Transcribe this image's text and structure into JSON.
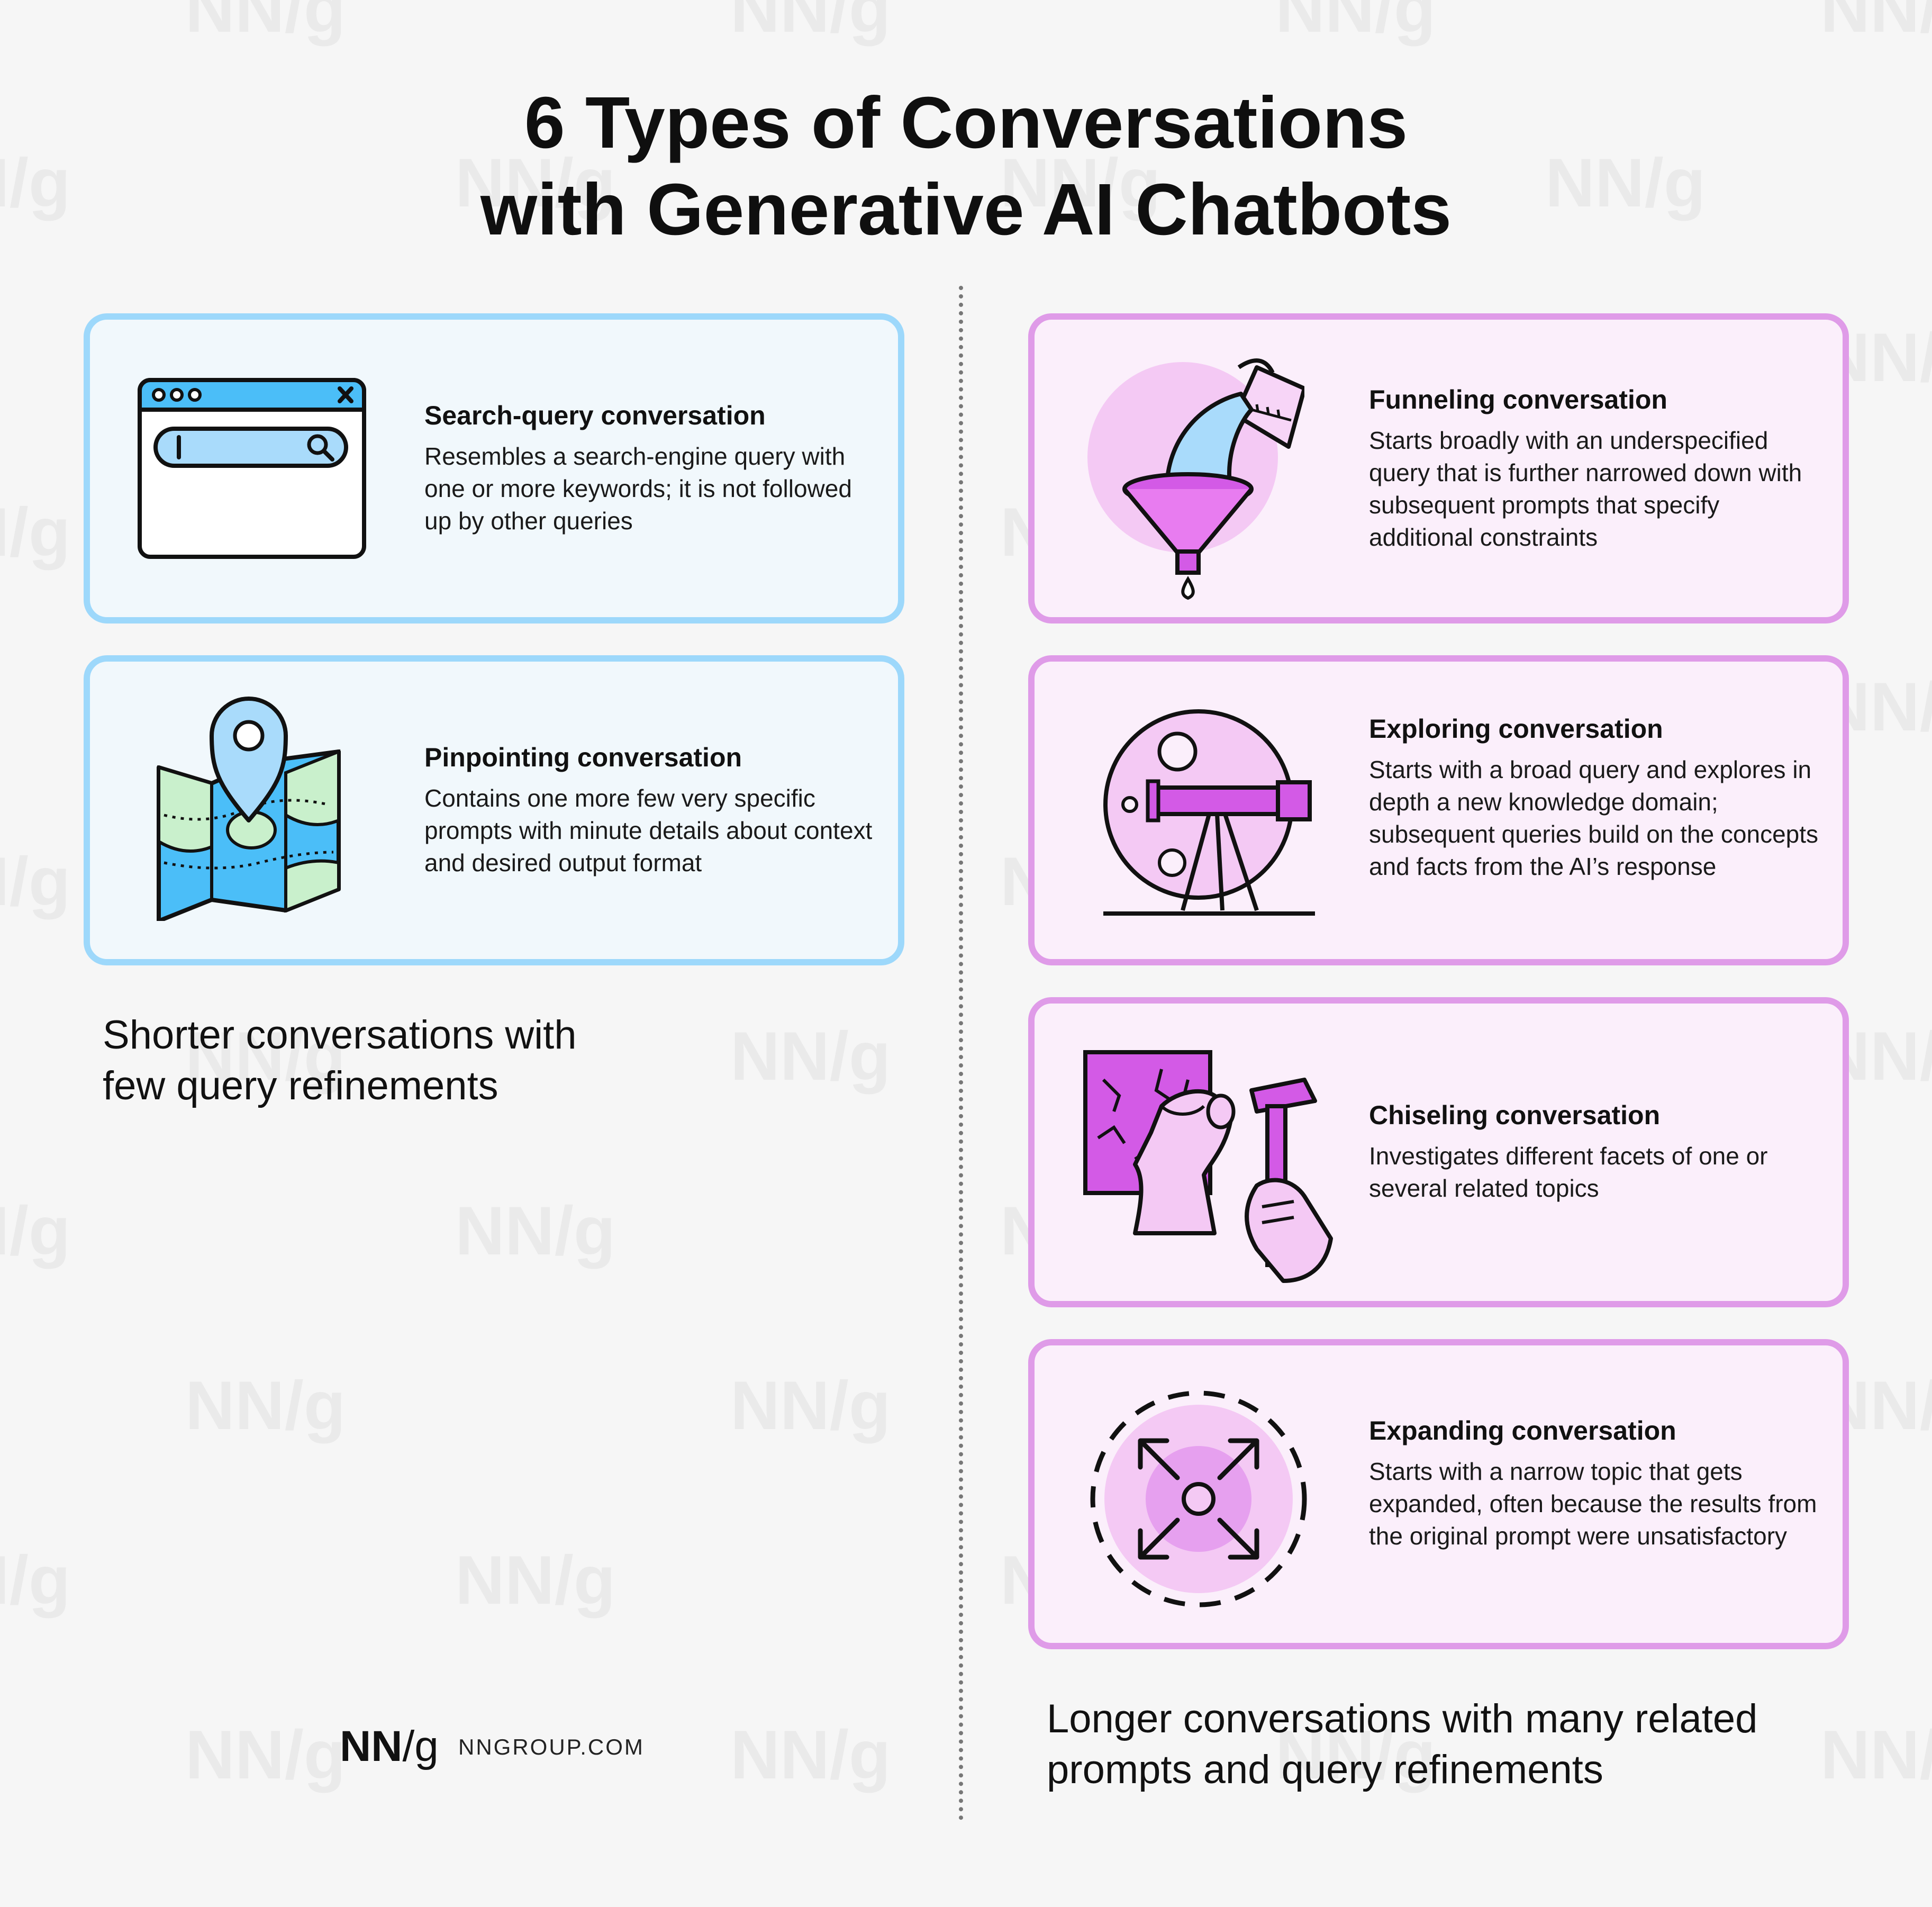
{
  "title": {
    "line1": "6 Types of Conversations",
    "line2": "with Generative AI Chatbots"
  },
  "cards": [
    {
      "title": "Search-query conversation",
      "description": "Resembles a search-engine query with one or more keywords; it is not followed up by other queries",
      "icon": "browser-search-icon"
    },
    {
      "title": "Pinpointing conversation",
      "description": "Contains one more few very specific prompts with minute details about context and desired output format",
      "icon": "map-pin-icon"
    },
    {
      "title": "Funneling conversation",
      "description": "Starts broadly with an underspecified query that is further narrowed down with subsequent prompts that specify additional constraints",
      "icon": "funnel-icon"
    },
    {
      "title": "Exploring conversation",
      "description": "Starts with a broad query and explores in depth a new knowledge domain; subsequent queries build on the concepts and facts from the AI’s response",
      "icon": "telescope-icon"
    },
    {
      "title": "Chiseling conversation",
      "description": "Investigates different facets of one or several related topics",
      "icon": "chisel-hammer-icon"
    },
    {
      "title": "Expanding conversation",
      "description": "Starts with a narrow topic that gets expanded, often because the results from the original prompt were unsatisfactory",
      "icon": "expand-arrows-icon"
    }
  ],
  "groups": {
    "short": {
      "line1": "Shorter conversations with",
      "line2": "few query refinements"
    },
    "long": {
      "line1": "Longer conversations with many related",
      "line2": "prompts and query refinements"
    }
  },
  "branding": {
    "logo_nn": "NN",
    "logo_slash": "/",
    "logo_g": "g",
    "url": "NNGROUP.COM",
    "watermark": "NN/g"
  },
  "colors": {
    "blue_border": "#9dd8fb",
    "blue_fill": "#f1f8fc",
    "pink_border": "#df9be8",
    "pink_fill": "#fbeffb",
    "accent_magenta": "#d35ae6",
    "accent_blue": "#4bbef8"
  }
}
